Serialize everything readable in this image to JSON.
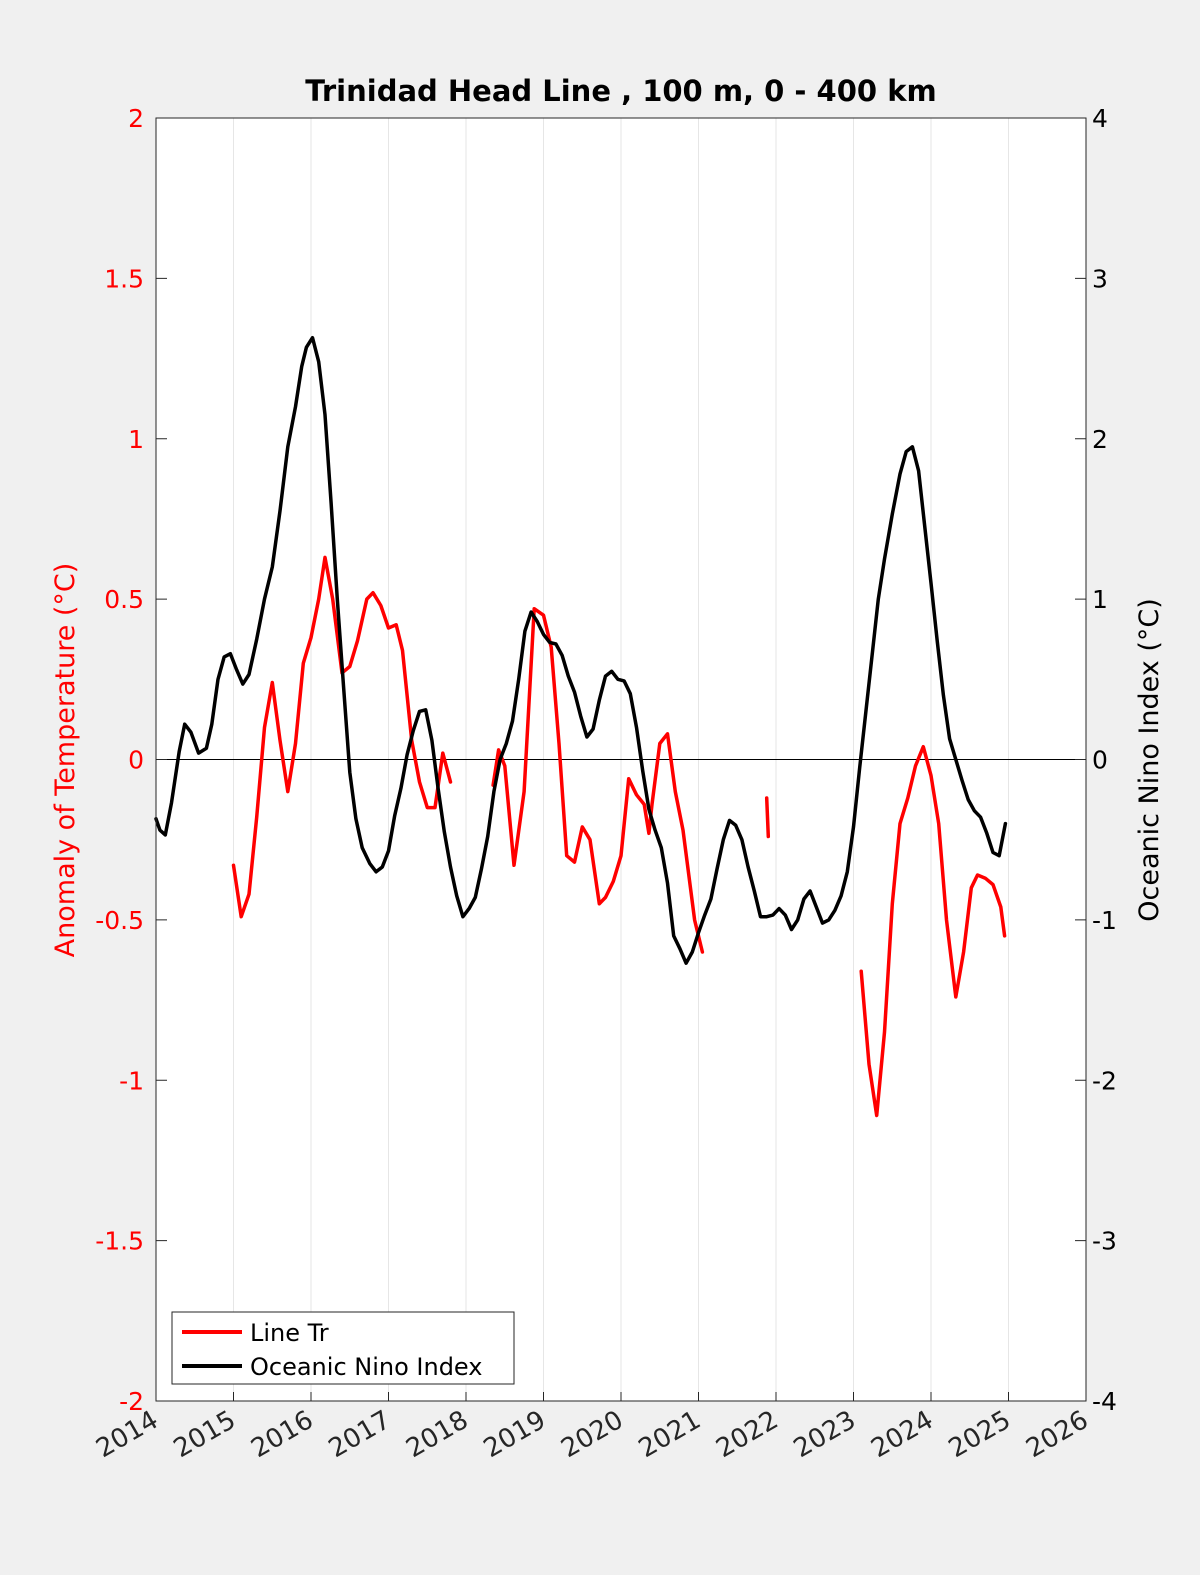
{
  "chart_data": {
    "type": "line",
    "title": "Trinidad Head Line , 100 m, 0 - 400 km",
    "xlabel": "",
    "xlim": [
      2014,
      2026
    ],
    "xticks": [
      "2014",
      "2015",
      "2016",
      "2017",
      "2018",
      "2019",
      "2020",
      "2021",
      "2022",
      "2023",
      "2024",
      "2025",
      "2026"
    ],
    "left_axis": {
      "label": "Anomaly of Temperature (°C)",
      "ylim": [
        -2,
        2
      ],
      "ticks": [
        "-2",
        "-1.5",
        "-1",
        "-0.5",
        "0",
        "0.5",
        "1",
        "1.5",
        "2"
      ],
      "color": "#ff0000"
    },
    "right_axis": {
      "label": "Oceanic Nino Index (°C)",
      "ylim": [
        -4,
        4
      ],
      "ticks": [
        "-4",
        "-3",
        "-2",
        "-1",
        "0",
        "1",
        "2",
        "3",
        "4"
      ],
      "color": "#000000"
    },
    "grid": "vertical",
    "legend": {
      "placement": "bottom-left",
      "entries": [
        "Line Tr",
        "Oceanic Nino Index"
      ]
    },
    "series": [
      {
        "name": "Line Tr",
        "axis": "left",
        "color": "#ff0000",
        "segments": [
          [
            [
              2015.0,
              -0.33
            ],
            [
              2015.1,
              -0.49
            ],
            [
              2015.2,
              -0.42
            ],
            [
              2015.3,
              -0.18
            ],
            [
              2015.4,
              0.1
            ],
            [
              2015.5,
              0.24
            ],
            [
              2015.6,
              0.06
            ],
            [
              2015.7,
              -0.1
            ],
            [
              2015.8,
              0.05
            ],
            [
              2015.9,
              0.3
            ],
            [
              2016.0,
              0.38
            ],
            [
              2016.1,
              0.5
            ],
            [
              2016.18,
              0.63
            ],
            [
              2016.28,
              0.5
            ],
            [
              2016.4,
              0.27
            ],
            [
              2016.5,
              0.29
            ],
            [
              2016.6,
              0.37
            ],
            [
              2016.72,
              0.5
            ],
            [
              2016.8,
              0.52
            ],
            [
              2016.9,
              0.48
            ],
            [
              2017.0,
              0.41
            ],
            [
              2017.1,
              0.42
            ],
            [
              2017.18,
              0.34
            ],
            [
              2017.3,
              0.06
            ],
            [
              2017.4,
              -0.07
            ],
            [
              2017.5,
              -0.15
            ],
            [
              2017.6,
              -0.15
            ],
            [
              2017.7,
              0.02
            ],
            [
              2017.8,
              -0.07
            ]
          ],
          [
            [
              2018.35,
              -0.08
            ],
            [
              2018.42,
              0.03
            ],
            [
              2018.5,
              -0.02
            ],
            [
              2018.62,
              -0.33
            ],
            [
              2018.75,
              -0.1
            ],
            [
              2018.88,
              0.47
            ],
            [
              2019.0,
              0.45
            ],
            [
              2019.1,
              0.35
            ],
            [
              2019.2,
              0.05
            ],
            [
              2019.3,
              -0.3
            ],
            [
              2019.4,
              -0.32
            ],
            [
              2019.5,
              -0.21
            ],
            [
              2019.6,
              -0.25
            ],
            [
              2019.72,
              -0.45
            ],
            [
              2019.8,
              -0.43
            ],
            [
              2019.9,
              -0.38
            ],
            [
              2020.0,
              -0.3
            ],
            [
              2020.1,
              -0.06
            ],
            [
              2020.2,
              -0.11
            ],
            [
              2020.3,
              -0.14
            ],
            [
              2020.36,
              -0.23
            ],
            [
              2020.4,
              -0.14
            ],
            [
              2020.5,
              0.05
            ],
            [
              2020.6,
              0.08
            ],
            [
              2020.7,
              -0.1
            ],
            [
              2020.8,
              -0.22
            ],
            [
              2020.95,
              -0.5
            ],
            [
              2021.05,
              -0.6
            ]
          ],
          [
            [
              2021.88,
              -0.12
            ],
            [
              2021.9,
              -0.24
            ]
          ],
          [
            [
              2023.1,
              -0.66
            ],
            [
              2023.2,
              -0.95
            ],
            [
              2023.3,
              -1.11
            ],
            [
              2023.4,
              -0.85
            ],
            [
              2023.5,
              -0.45
            ],
            [
              2023.6,
              -0.2
            ],
            [
              2023.7,
              -0.12
            ],
            [
              2023.8,
              -0.02
            ],
            [
              2023.9,
              0.04
            ],
            [
              2024.0,
              -0.05
            ],
            [
              2024.1,
              -0.2
            ],
            [
              2024.2,
              -0.5
            ],
            [
              2024.32,
              -0.74
            ],
            [
              2024.42,
              -0.6
            ],
            [
              2024.52,
              -0.4
            ],
            [
              2024.6,
              -0.36
            ],
            [
              2024.7,
              -0.37
            ],
            [
              2024.8,
              -0.39
            ],
            [
              2024.9,
              -0.46
            ],
            [
              2024.95,
              -0.55
            ]
          ]
        ]
      },
      {
        "name": "Oceanic Nino Index",
        "axis": "right",
        "color": "#000000",
        "segments": [
          [
            [
              2014.0,
              -0.37
            ],
            [
              2014.05,
              -0.44
            ],
            [
              2014.12,
              -0.47
            ],
            [
              2014.2,
              -0.27
            ],
            [
              2014.3,
              0.05
            ],
            [
              2014.37,
              0.22
            ],
            [
              2014.45,
              0.17
            ],
            [
              2014.55,
              0.04
            ],
            [
              2014.65,
              0.07
            ],
            [
              2014.72,
              0.22
            ],
            [
              2014.8,
              0.5
            ],
            [
              2014.88,
              0.64
            ],
            [
              2014.96,
              0.66
            ],
            [
              2015.04,
              0.56
            ],
            [
              2015.12,
              0.47
            ],
            [
              2015.2,
              0.53
            ],
            [
              2015.3,
              0.75
            ],
            [
              2015.4,
              1.0
            ],
            [
              2015.5,
              1.2
            ],
            [
              2015.6,
              1.55
            ],
            [
              2015.7,
              1.95
            ],
            [
              2015.8,
              2.2
            ],
            [
              2015.88,
              2.45
            ],
            [
              2015.94,
              2.57
            ],
            [
              2016.02,
              2.63
            ],
            [
              2016.1,
              2.48
            ],
            [
              2016.18,
              2.15
            ],
            [
              2016.26,
              1.6
            ],
            [
              2016.34,
              1.0
            ],
            [
              2016.42,
              0.45
            ],
            [
              2016.5,
              -0.08
            ],
            [
              2016.58,
              -0.37
            ],
            [
              2016.66,
              -0.55
            ],
            [
              2016.76,
              -0.65
            ],
            [
              2016.84,
              -0.7
            ],
            [
              2016.92,
              -0.67
            ],
            [
              2017.0,
              -0.57
            ],
            [
              2017.08,
              -0.35
            ],
            [
              2017.16,
              -0.18
            ],
            [
              2017.24,
              0.03
            ],
            [
              2017.32,
              0.18
            ],
            [
              2017.4,
              0.3
            ],
            [
              2017.48,
              0.31
            ],
            [
              2017.56,
              0.12
            ],
            [
              2017.64,
              -0.18
            ],
            [
              2017.72,
              -0.45
            ],
            [
              2017.8,
              -0.67
            ],
            [
              2017.88,
              -0.85
            ],
            [
              2017.96,
              -0.98
            ],
            [
              2018.04,
              -0.93
            ],
            [
              2018.12,
              -0.86
            ],
            [
              2018.2,
              -0.68
            ],
            [
              2018.28,
              -0.48
            ],
            [
              2018.36,
              -0.2
            ],
            [
              2018.44,
              0.0
            ],
            [
              2018.52,
              0.1
            ],
            [
              2018.6,
              0.24
            ],
            [
              2018.68,
              0.5
            ],
            [
              2018.76,
              0.8
            ],
            [
              2018.84,
              0.92
            ],
            [
              2018.92,
              0.86
            ],
            [
              2019.0,
              0.78
            ],
            [
              2019.08,
              0.73
            ],
            [
              2019.16,
              0.72
            ],
            [
              2019.24,
              0.65
            ],
            [
              2019.32,
              0.52
            ],
            [
              2019.4,
              0.42
            ],
            [
              2019.48,
              0.27
            ],
            [
              2019.56,
              0.14
            ],
            [
              2019.64,
              0.19
            ],
            [
              2019.72,
              0.37
            ],
            [
              2019.8,
              0.52
            ],
            [
              2019.88,
              0.55
            ],
            [
              2019.96,
              0.5
            ],
            [
              2020.04,
              0.49
            ],
            [
              2020.12,
              0.41
            ],
            [
              2020.2,
              0.2
            ],
            [
              2020.28,
              -0.07
            ],
            [
              2020.36,
              -0.31
            ],
            [
              2020.44,
              -0.44
            ],
            [
              2020.52,
              -0.55
            ],
            [
              2020.6,
              -0.77
            ],
            [
              2020.68,
              -1.1
            ],
            [
              2020.76,
              -1.18
            ],
            [
              2020.84,
              -1.27
            ],
            [
              2020.92,
              -1.2
            ],
            [
              2021.0,
              -1.08
            ],
            [
              2021.08,
              -0.97
            ],
            [
              2021.16,
              -0.87
            ],
            [
              2021.24,
              -0.68
            ],
            [
              2021.32,
              -0.5
            ],
            [
              2021.4,
              -0.38
            ],
            [
              2021.48,
              -0.41
            ],
            [
              2021.56,
              -0.5
            ],
            [
              2021.64,
              -0.67
            ],
            [
              2021.72,
              -0.82
            ],
            [
              2021.8,
              -0.98
            ],
            [
              2021.88,
              -0.98
            ],
            [
              2021.96,
              -0.97
            ],
            [
              2022.04,
              -0.93
            ],
            [
              2022.12,
              -0.97
            ],
            [
              2022.2,
              -1.06
            ],
            [
              2022.28,
              -1.0
            ],
            [
              2022.36,
              -0.87
            ],
            [
              2022.44,
              -0.82
            ],
            [
              2022.52,
              -0.92
            ],
            [
              2022.6,
              -1.02
            ],
            [
              2022.68,
              -1.0
            ],
            [
              2022.76,
              -0.94
            ],
            [
              2022.84,
              -0.85
            ],
            [
              2022.92,
              -0.7
            ],
            [
              2023.0,
              -0.42
            ],
            [
              2023.08,
              -0.05
            ],
            [
              2023.16,
              0.3
            ],
            [
              2023.24,
              0.65
            ],
            [
              2023.32,
              1.0
            ],
            [
              2023.4,
              1.25
            ],
            [
              2023.5,
              1.53
            ],
            [
              2023.6,
              1.78
            ],
            [
              2023.68,
              1.92
            ],
            [
              2023.76,
              1.95
            ],
            [
              2023.84,
              1.8
            ],
            [
              2023.92,
              1.45
            ],
            [
              2024.0,
              1.1
            ],
            [
              2024.08,
              0.74
            ],
            [
              2024.16,
              0.4
            ],
            [
              2024.24,
              0.13
            ],
            [
              2024.32,
              0.0
            ],
            [
              2024.4,
              -0.13
            ],
            [
              2024.48,
              -0.25
            ],
            [
              2024.56,
              -0.32
            ],
            [
              2024.64,
              -0.36
            ],
            [
              2024.72,
              -0.46
            ],
            [
              2024.8,
              -0.58
            ],
            [
              2024.88,
              -0.6
            ],
            [
              2024.96,
              -0.4
            ]
          ]
        ]
      }
    ]
  }
}
